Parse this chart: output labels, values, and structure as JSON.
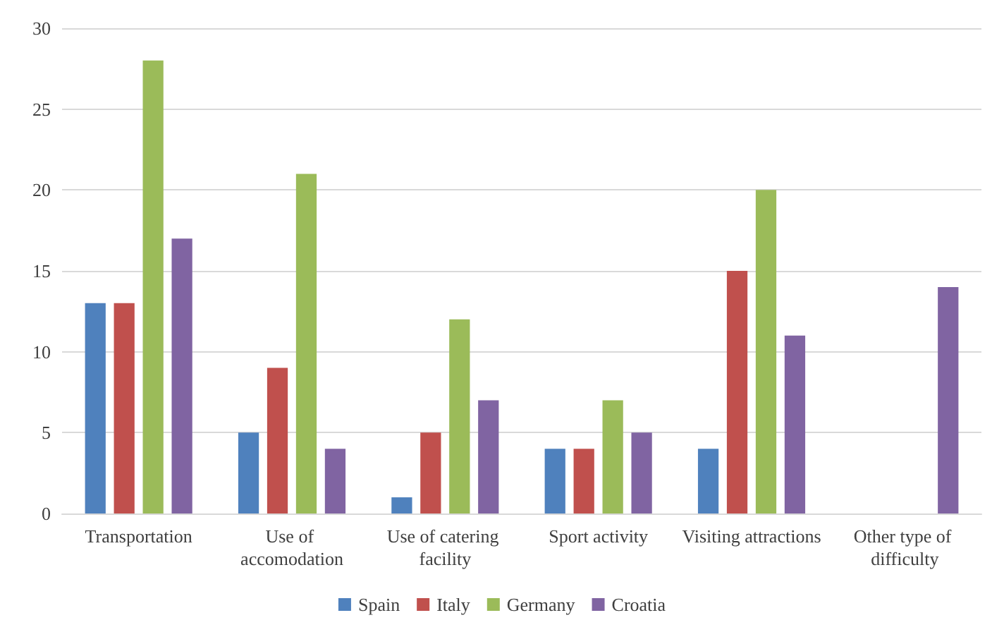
{
  "chart_data": {
    "type": "bar",
    "categories": [
      "Transportation",
      "Use of accomodation",
      "Use of catering facility",
      "Sport activity",
      "Visiting attractions",
      "Other type of difficulty"
    ],
    "series": [
      {
        "name": "Spain",
        "color": "#4f81bd",
        "values": [
          13,
          5,
          1,
          4,
          4,
          0
        ]
      },
      {
        "name": "Italy",
        "color": "#c0504d",
        "values": [
          13,
          9,
          5,
          4,
          15,
          0
        ]
      },
      {
        "name": "Germany",
        "color": "#9bbb59",
        "values": [
          28,
          21,
          12,
          7,
          20,
          0
        ]
      },
      {
        "name": "Croatia",
        "color": "#8064a2",
        "values": [
          17,
          4,
          7,
          5,
          11,
          14
        ]
      }
    ],
    "ylim": [
      0,
      30
    ],
    "yticks": [
      0,
      5,
      10,
      15,
      20,
      25,
      30
    ],
    "grid": "y",
    "legend": "bottom"
  }
}
